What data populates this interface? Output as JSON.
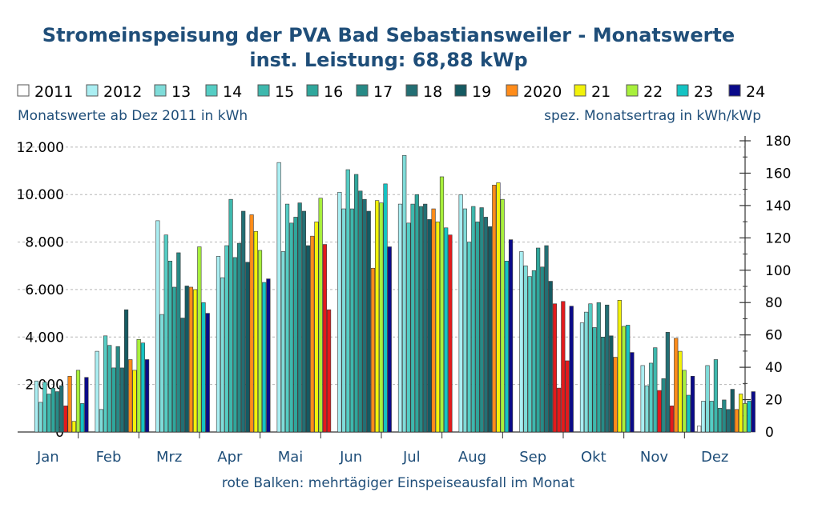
{
  "chart_data": {
    "type": "bar",
    "title": "Stromeinspeisung der PVA Bad Sebastiansweiler - Monatswerte",
    "subtitle": "inst. Leistung: 68,88 kWp",
    "ylabel_left": "Monatswerte ab Dez 2011 in kWh",
    "ylabel_right": "spez. Monatsertrag in kWh/kWp",
    "footnote": "rote Balken: mehrtägiger Einspeiseausfall im Monat",
    "ylim": [
      0,
      12400
    ],
    "ylim_right": [
      0,
      180
    ],
    "yticks_left": [
      0,
      2000,
      4000,
      6000,
      8000,
      10000,
      12000
    ],
    "ytick_labels_left": [
      "0",
      "2.000",
      "4.000",
      "6.000",
      "8.000",
      "10.000",
      "12.000"
    ],
    "yticks_right": [
      0,
      20,
      40,
      60,
      80,
      100,
      120,
      140,
      160,
      180
    ],
    "ytick_labels_right": [
      "0",
      "20",
      "40",
      "60",
      "80",
      "100",
      "120",
      "140",
      "160",
      "180"
    ],
    "grid": true,
    "legend_position": "top",
    "categories": [
      "Jan",
      "Feb",
      "Mrz",
      "Apr",
      "Mai",
      "Jun",
      "Jul",
      "Aug",
      "Sep",
      "Okt",
      "Nov",
      "Dez"
    ],
    "outage_color": "#e31a1c",
    "series": [
      {
        "name": "2011",
        "color": "#ffffff",
        "values": [
          null,
          null,
          null,
          null,
          null,
          null,
          null,
          null,
          null,
          null,
          null,
          250
        ]
      },
      {
        "name": "2012",
        "color": "#aaeef2",
        "values": [
          2150,
          3400,
          8900,
          7400,
          11350,
          10100,
          9600,
          10000,
          7600,
          4600,
          2800,
          1300
        ],
        "outage": [
          false,
          false,
          false,
          false,
          false,
          false,
          false,
          false,
          false,
          false,
          false,
          false
        ]
      },
      {
        "name": "13",
        "color": "#7fdcd9",
        "values": [
          1250,
          950,
          4950,
          6500,
          7600,
          9400,
          11650,
          9400,
          7000,
          5050,
          1950,
          2800
        ]
      },
      {
        "name": "14",
        "color": "#55cdc4",
        "values": [
          2100,
          4050,
          8300,
          7850,
          9600,
          11050,
          8800,
          8000,
          6550,
          5400,
          2900,
          1300
        ]
      },
      {
        "name": "15",
        "color": "#3eb8ad",
        "values": [
          1600,
          3650,
          7200,
          9800,
          8800,
          9400,
          9600,
          9500,
          6800,
          4400,
          3550,
          3050
        ]
      },
      {
        "name": "16",
        "color": "#2fa79c",
        "values": [
          1850,
          2700,
          6100,
          7350,
          9050,
          10850,
          10000,
          8850,
          7750,
          5450,
          1750,
          1000
        ]
      },
      {
        "name": "17",
        "color": "#278a86",
        "values": [
          1700,
          3600,
          7550,
          7950,
          9650,
          10150,
          9500,
          9450,
          6950,
          4000,
          2250,
          1350
        ]
      },
      {
        "name": "18",
        "color": "#236f74",
        "values": [
          1950,
          2700,
          4800,
          9300,
          9300,
          9800,
          9600,
          9050,
          7850,
          5350,
          4200,
          950
        ]
      },
      {
        "name": "19",
        "color": "#155a62",
        "values": [
          1100,
          5150,
          6150,
          7150,
          7850,
          9300,
          8950,
          8650,
          6350,
          4050,
          1100,
          1800
        ],
        "outage": [
          true,
          false,
          false,
          false,
          false,
          false,
          false,
          false,
          false,
          false,
          true,
          false
        ]
      },
      {
        "name": "2020",
        "color": "#ff8c1a",
        "values": [
          2350,
          3050,
          6100,
          9150,
          8250,
          6900,
          9400,
          10400,
          5400,
          3150,
          3950,
          950
        ],
        "outage": [
          false,
          false,
          false,
          false,
          false,
          false,
          false,
          false,
          true,
          false,
          false,
          false
        ]
      },
      {
        "name": "21",
        "color": "#f2f20a",
        "values": [
          450,
          2600,
          6000,
          8450,
          8850,
          9750,
          8850,
          10500,
          1850,
          5550,
          3400,
          1600
        ]
      },
      {
        "name": "22",
        "color": "#a8f03c",
        "values": [
          2600,
          3900,
          7800,
          7650,
          9850,
          9650,
          10750,
          9800,
          5500,
          4450,
          2600,
          1200
        ],
        "outage": [
          false,
          false,
          false,
          false,
          false,
          false,
          false,
          false,
          true,
          false,
          false,
          false
        ]
      },
      {
        "name": "23",
        "color": "#14c3c3",
        "values": [
          1200,
          3750,
          5450,
          6300,
          7900,
          10450,
          8600,
          7200,
          3000,
          4500,
          1550,
          1300
        ],
        "outage": [
          false,
          false,
          false,
          false,
          true,
          false,
          false,
          false,
          true,
          false,
          false,
          false
        ]
      },
      {
        "name": "24",
        "color": "#0a0a8a",
        "values": [
          2300,
          3050,
          5000,
          6450,
          5150,
          7800,
          8300,
          8100,
          5300,
          3350,
          2350,
          1700
        ],
        "outage": [
          false,
          false,
          false,
          false,
          true,
          false,
          true,
          false,
          false,
          false,
          false,
          false
        ]
      }
    ],
    "outage_overrides": {
      "19-Jan": true,
      "19-Nov": true,
      "19-Dez": false,
      "2020-Sep": true,
      "21-Sep": true,
      "23-Mai": true,
      "23-Sep": true,
      "24-Mai": true,
      "24-Jul": true,
      "24-Sep": false,
      "18-Dez": false,
      "2020-Dez": false,
      "16-Nov": true
    }
  }
}
